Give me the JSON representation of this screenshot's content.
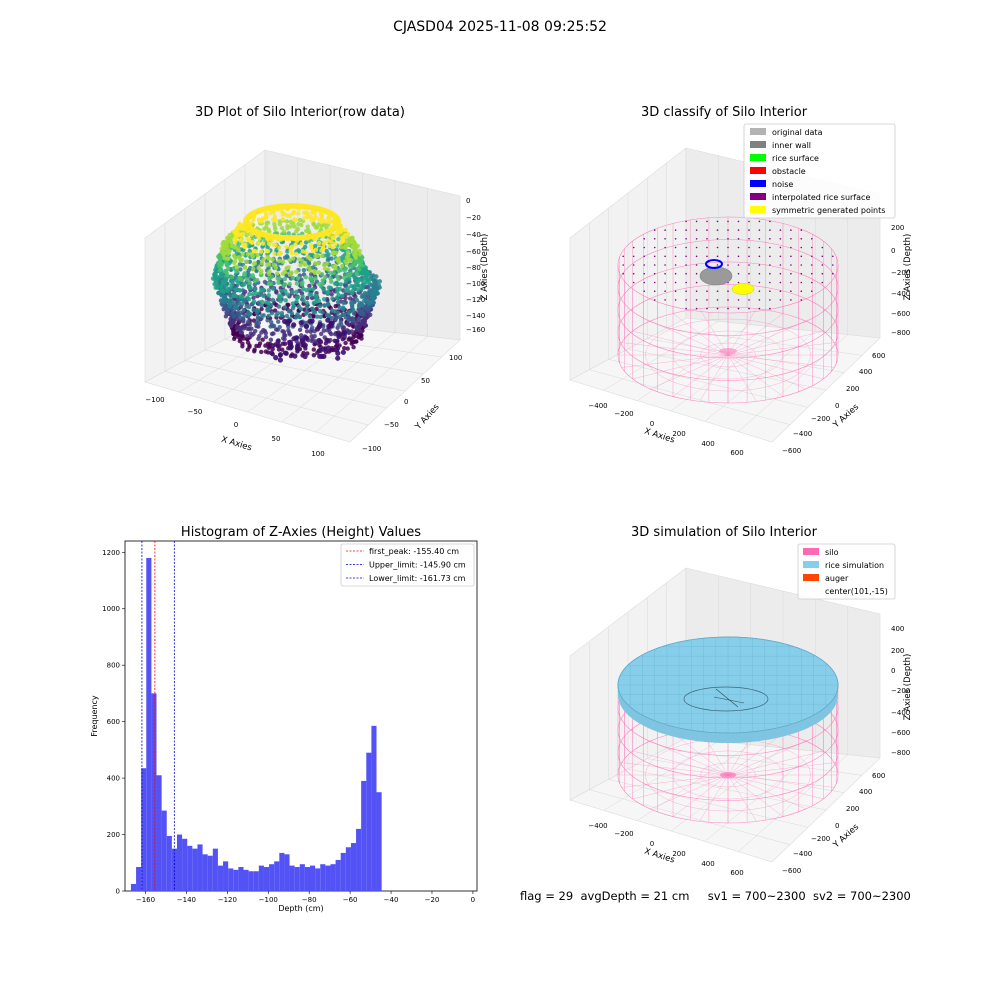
{
  "suptitle": "CJASD04 2025-11-08 09:25:52",
  "status": {
    "flag": "flag = 29",
    "avg_depth": "avgDepth = 21 cm",
    "sv1": "sv1 = 700~2300",
    "sv2": "sv2 = 700~2300"
  },
  "colors": {
    "histogram": "#5050f5",
    "first_peak_line": "#ff0000",
    "limit_lines": "#0000cc",
    "silo_wire": "#ff69b4",
    "rice_surface": "#87ceeb",
    "auger": "#ff4500"
  },
  "chart_data": [
    {
      "type": "scatter3d",
      "title": "3D Plot of Silo Interior(row data)",
      "xlabel": "X Axies",
      "ylabel": "Y Axies",
      "zlabel": "Z Axies (Depth)",
      "x_ticks": [
        "−100",
        "−50",
        "0",
        "50",
        "100"
      ],
      "y_ticks": [
        "−100",
        "−50",
        "0",
        "50",
        "100"
      ],
      "z_ticks": [
        "0",
        "−20",
        "−40",
        "−60",
        "−80",
        "−100",
        "−120",
        "−140",
        "−160"
      ],
      "xlim": [
        -100,
        100
      ],
      "ylim": [
        -100,
        100
      ],
      "zlim": [
        -165,
        0
      ],
      "colormap": "viridis",
      "grid": true
    },
    {
      "type": "scatter3d",
      "title": "3D classify of Silo Interior",
      "xlabel": "X Axies",
      "ylabel": "Y Axies",
      "zlabel": "Z Axies (Depth)",
      "x_ticks": [
        "−400",
        "−200",
        "0",
        "200",
        "400",
        "600"
      ],
      "y_ticks": [
        "−600",
        "−400",
        "−200",
        "0",
        "200",
        "400",
        "600"
      ],
      "z_ticks": [
        "200",
        "0",
        "−200",
        "−400",
        "−600",
        "−800"
      ],
      "legend": [
        {
          "label": "original data",
          "color": "#b3b3b3"
        },
        {
          "label": "inner wall",
          "color": "#808080"
        },
        {
          "label": "rice surface",
          "color": "#00ff00"
        },
        {
          "label": "obstacle",
          "color": "#ff0000"
        },
        {
          "label": "noise",
          "color": "#0000ff"
        },
        {
          "label": "interpolated rice surface",
          "color": "#800080"
        },
        {
          "label": "symmetric generated points",
          "color": "#ffff00"
        }
      ],
      "legend_position": "top-right",
      "grid": true
    },
    {
      "type": "bar",
      "title": "Histogram of Z-Axies (Height) Values",
      "xlabel": "Depth (cm)",
      "ylabel": "Frequency",
      "xlim": [
        -170,
        2
      ],
      "ylim": [
        0,
        1240
      ],
      "x_ticks": [
        -160,
        -140,
        -120,
        -100,
        -80,
        -60,
        -40,
        -20,
        0
      ],
      "y_ticks": [
        0,
        200,
        400,
        600,
        800,
        1000,
        1200
      ],
      "bin_start": -167.1,
      "bin_width": 2.5,
      "values": [
        25,
        85,
        435,
        1180,
        700,
        410,
        285,
        195,
        150,
        200,
        185,
        160,
        150,
        165,
        130,
        125,
        150,
        90,
        105,
        80,
        75,
        85,
        75,
        70,
        70,
        90,
        85,
        95,
        105,
        135,
        130,
        90,
        85,
        95,
        85,
        90,
        80,
        95,
        90,
        95,
        110,
        135,
        155,
        170,
        220,
        390,
        490,
        585,
        350
      ],
      "vlines": [
        {
          "x": -155.4,
          "label": "first_peak: -155.40 cm",
          "color": "#ff0000"
        },
        {
          "x": -145.9,
          "label": "Upper_limit: -145.90 cm",
          "color": "#0000cc"
        },
        {
          "x": -161.73,
          "label": "Lower_limit: -161.73 cm",
          "color": "#0000cc"
        }
      ],
      "legend_position": "top-right",
      "grid": false
    },
    {
      "type": "surface3d",
      "title": "3D simulation of Silo Interior",
      "xlabel": "X Axies",
      "ylabel": "Y Axies",
      "zlabel": "Z Axies (Depth)",
      "x_ticks": [
        "−400",
        "−200",
        "0",
        "200",
        "400",
        "600"
      ],
      "y_ticks": [
        "−600",
        "−400",
        "−200",
        "0",
        "200",
        "400",
        "600"
      ],
      "z_ticks": [
        "400",
        "200",
        "0",
        "−200",
        "−400",
        "−600",
        "−800"
      ],
      "legend": [
        {
          "label": "silo",
          "color": "#ff69b4"
        },
        {
          "label": "rice simulation",
          "color": "#87ceeb"
        },
        {
          "label": "auger",
          "color": "#ff4500"
        },
        {
          "label": "center(101,-15)",
          "color": "none"
        }
      ],
      "legend_position": "top-right",
      "grid": true
    }
  ]
}
